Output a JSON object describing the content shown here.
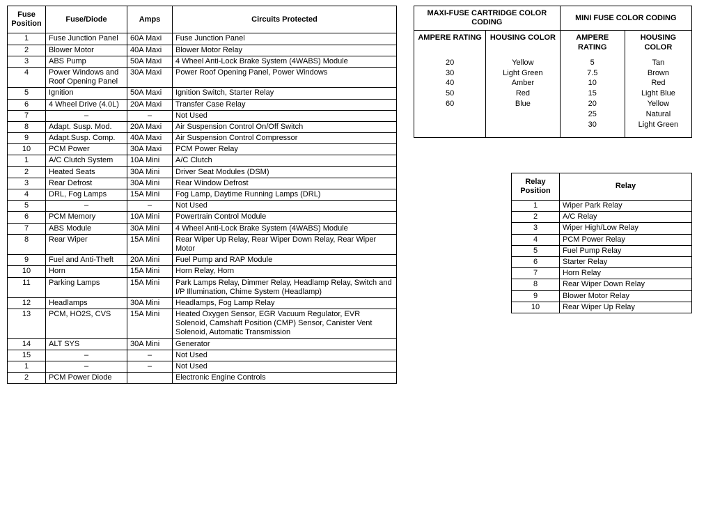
{
  "fuse_table": {
    "columns": [
      "Fuse Position",
      "Fuse/Diode",
      "Amps",
      "Circuits Protected"
    ],
    "rows": [
      [
        "1",
        "Fuse Junction Panel",
        "60A Maxi",
        "Fuse Junction Panel"
      ],
      [
        "2",
        "Blower Motor",
        "40A Maxi",
        "Blower Motor Relay"
      ],
      [
        "3",
        "ABS Pump",
        "50A Maxi",
        "4 Wheel Anti-Lock Brake System (4WABS) Module"
      ],
      [
        "4",
        "Power Windows and Roof Opening Panel",
        "30A Maxi",
        "Power Roof Opening Panel, Power Windows"
      ],
      [
        "5",
        "Ignition",
        "50A Maxi",
        "Ignition Switch, Starter Relay"
      ],
      [
        "6",
        "4 Wheel Drive (4.0L)",
        "20A Maxi",
        "Transfer Case Relay"
      ],
      [
        "7",
        "–",
        "–",
        "Not Used"
      ],
      [
        "8",
        "Adapt. Susp. Mod.",
        "20A Maxi",
        "Air Suspension Control On/Off Switch"
      ],
      [
        "9",
        "Adapt.Susp. Comp.",
        "40A Maxi",
        "Air Suspension Control Compressor"
      ],
      [
        "10",
        "PCM Power",
        "30A Maxi",
        "PCM Power Relay"
      ],
      [
        "1",
        "A/C Clutch System",
        "10A Mini",
        "A/C Clutch"
      ],
      [
        "2",
        "Heated Seats",
        "30A Mini",
        "Driver Seat Modules (DSM)"
      ],
      [
        "3",
        "Rear Defrost",
        "30A Mini",
        "Rear Window Defrost"
      ],
      [
        "4",
        "DRL, Fog Lamps",
        "15A Mini",
        "Fog Lamp, Daytime Running Lamps (DRL)"
      ],
      [
        "5",
        "–",
        "–",
        "Not Used"
      ],
      [
        "6",
        "PCM Memory",
        "10A Mini",
        "Powertrain Control Module"
      ],
      [
        "7",
        "ABS Module",
        "30A Mini",
        "4 Wheel Anti-Lock Brake System (4WABS) Module"
      ],
      [
        "8",
        "Rear Wiper",
        "15A Mini",
        "Rear Wiper Up Relay, Rear Wiper Down Relay, Rear Wiper Motor"
      ],
      [
        "9",
        "Fuel and Anti-Theft",
        "20A Mini",
        "Fuel Pump and RAP Module"
      ],
      [
        "10",
        "Horn",
        "15A Mini",
        "Horn Relay, Horn"
      ],
      [
        "11",
        "Parking Lamps",
        "15A Mini",
        "Park Lamps Relay, Dimmer Relay, Headlamp Relay, Switch and I/P Illumination, Chime System (Headlamp)"
      ],
      [
        "12",
        "Headlamps",
        "30A Mini",
        "Headlamps, Fog Lamp Relay"
      ],
      [
        "13",
        "PCM, HO2S, CVS",
        "15A Mini",
        "Heated Oxygen Sensor, EGR Vacuum Regulator, EVR Solenoid, Camshaft Position (CMP) Sensor, Canister Vent Solenoid, Automatic Transmission"
      ],
      [
        "14",
        "ALT SYS",
        "30A Mini",
        "Generator"
      ],
      [
        "15",
        "–",
        "–",
        "Not Used"
      ],
      [
        "1",
        "–",
        "–",
        "Not Used"
      ],
      [
        "2",
        "PCM Power Diode",
        "",
        "Electronic Engine Controls"
      ]
    ]
  },
  "color_coding": {
    "title_maxi": "MAXI-FUSE CARTRIDGE COLOR CODING",
    "title_mini": "MINI FUSE COLOR CODING",
    "h_ampere": "AMPERE RATING",
    "h_color": "HOUSING COLOR",
    "maxi_amps": [
      "20",
      "30",
      "40",
      "50",
      "60"
    ],
    "maxi_colors": [
      "Yellow",
      "Light Green",
      "Amber",
      "Red",
      "Blue"
    ],
    "mini_amps": [
      "5",
      "7.5",
      "10",
      "15",
      "20",
      "25",
      "30"
    ],
    "mini_colors": [
      "Tan",
      "Brown",
      "Red",
      "Light Blue",
      "Yellow",
      "Natural",
      "Light Green"
    ]
  },
  "relay_table": {
    "columns": [
      "Relay Position",
      "Relay"
    ],
    "rows": [
      [
        "1",
        "Wiper Park Relay"
      ],
      [
        "2",
        "A/C Relay"
      ],
      [
        "3",
        "Wiper High/Low Relay"
      ],
      [
        "4",
        "PCM Power Relay"
      ],
      [
        "5",
        "Fuel Pump Relay"
      ],
      [
        "6",
        "Starter Relay"
      ],
      [
        "7",
        "Horn Relay"
      ],
      [
        "8",
        "Rear Wiper Down Relay"
      ],
      [
        "9",
        "Blower Motor Relay"
      ],
      [
        "10",
        "Rear Wiper Up Relay"
      ]
    ]
  },
  "style": {
    "text_color": "#000000",
    "border_color": "#000000",
    "background": "#ffffff",
    "font_size_body": 11,
    "font_size_header": 11
  }
}
